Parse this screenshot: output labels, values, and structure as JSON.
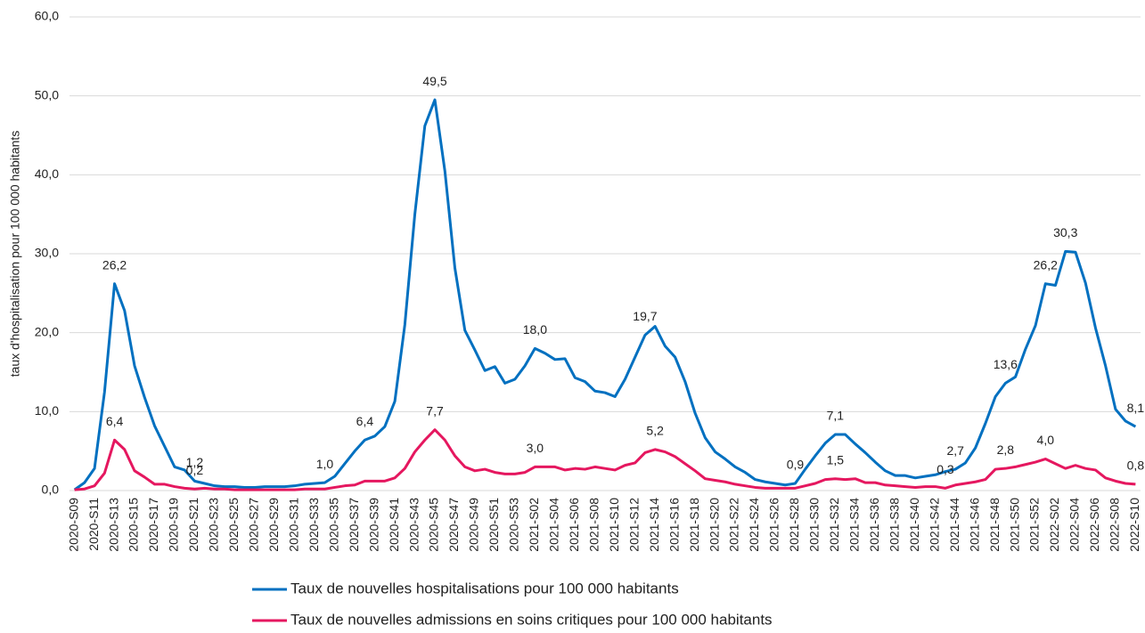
{
  "chart_data": {
    "type": "line",
    "y_label": "taux d'hospitalisation pour 100 000 habitants",
    "categories": [
      "2020-S09",
      null,
      "2020-S11",
      null,
      "2020-S13",
      null,
      "2020-S15",
      null,
      "2020-S17",
      null,
      "2020-S19",
      null,
      "2020-S21",
      null,
      "2020-S23",
      null,
      "2020-S25",
      null,
      "2020-S27",
      null,
      "2020-S29",
      null,
      "2020-S31",
      null,
      "2020-S33",
      null,
      "2020-S35",
      null,
      "2020-S37",
      null,
      "2020-S39",
      null,
      "2020-S41",
      null,
      "2020-S43",
      null,
      "2020-S45",
      null,
      "2020-S47",
      null,
      "2020-S49",
      null,
      "2020-S51",
      null,
      "2020-S53",
      null,
      "2021-S02",
      null,
      "2021-S04",
      null,
      "2021-S06",
      null,
      "2021-S08",
      null,
      "2021-S10",
      null,
      "2021-S12",
      null,
      "2021-S14",
      null,
      "2021-S16",
      null,
      "2021-S18",
      null,
      "2021-S20",
      null,
      "2021-S22",
      null,
      "2021-S24",
      null,
      "2021-S26",
      null,
      "2021-S28",
      null,
      "2021-S30",
      null,
      "2021-S32",
      null,
      "2021-S34",
      null,
      "2021-S36",
      null,
      "2021-S38",
      null,
      "2021-S40",
      null,
      "2021-S42",
      null,
      "2021-S44",
      null,
      "2021-S46",
      null,
      "2021-S48",
      null,
      "2021-S50",
      null,
      "2021-S52",
      null,
      "2022-S02",
      null,
      "2022-S04",
      null,
      "2022-S06",
      null,
      "2022-S08",
      null,
      "2022-S10"
    ],
    "series": [
      {
        "name": "Taux de nouvelles hospitalisations pour 100 000 habitants",
        "color": "#0070c0",
        "values": [
          0.1,
          1,
          2.8,
          12.5,
          26.2,
          22.8,
          15.8,
          11.8,
          8.2,
          5.6,
          3.0,
          2.6,
          1.2,
          0.9,
          0.6,
          0.5,
          0.5,
          0.4,
          0.4,
          0.5,
          0.5,
          0.5,
          0.6,
          0.8,
          0.9,
          1.0,
          1.8,
          3.4,
          5.0,
          6.4,
          6.9,
          8.1,
          11.3,
          21,
          35,
          46.2,
          49.5,
          40.5,
          28.2,
          20.3,
          17.8,
          15.2,
          15.7,
          13.6,
          14.1,
          15.8,
          18.0,
          17.4,
          16.6,
          16.7,
          14.3,
          13.8,
          12.6,
          12.4,
          11.9,
          14.1,
          16.9,
          19.7,
          20.8,
          18.3,
          16.9,
          13.8,
          9.8,
          6.7,
          4.9,
          4.0,
          3.0,
          2.3,
          1.4,
          1.1,
          0.9,
          0.7,
          0.9,
          2.7,
          4.4,
          6.0,
          7.1,
          7.1,
          5.9,
          4.8,
          3.6,
          2.5,
          1.9,
          1.9,
          1.6,
          1.8,
          2.0,
          2.4,
          2.7,
          3.5,
          5.4,
          8.5,
          11.9,
          13.6,
          14.4,
          17.9,
          20.9,
          26.2,
          26.0,
          30.3,
          30.2,
          26.3,
          20.6,
          15.8,
          10.3,
          8.8,
          8.1
        ],
        "value_labels": [
          null,
          null,
          null,
          null,
          "26,2",
          null,
          null,
          null,
          null,
          null,
          null,
          null,
          "1,2",
          null,
          null,
          null,
          null,
          null,
          null,
          null,
          null,
          null,
          null,
          null,
          null,
          "1,0",
          null,
          null,
          null,
          "6,4",
          null,
          null,
          null,
          null,
          null,
          null,
          "49,5",
          null,
          null,
          null,
          null,
          null,
          null,
          null,
          null,
          null,
          "18,0",
          null,
          null,
          null,
          null,
          null,
          null,
          null,
          null,
          null,
          null,
          "19,7",
          null,
          null,
          null,
          null,
          null,
          null,
          null,
          null,
          null,
          null,
          null,
          null,
          null,
          null,
          "0,9",
          null,
          null,
          null,
          "7,1",
          null,
          null,
          null,
          null,
          null,
          null,
          null,
          null,
          null,
          null,
          null,
          "2,7",
          null,
          null,
          null,
          null,
          "13,6",
          null,
          null,
          null,
          "26,2",
          null,
          "30,3",
          null,
          null,
          null,
          null,
          null,
          null,
          "8,1"
        ]
      },
      {
        "name": "Taux de nouvelles admissions en soins critiques pour 100 000 habitants",
        "color": "#e5175f",
        "values": [
          0.1,
          0.2,
          0.6,
          2.2,
          6.4,
          5.2,
          2.5,
          1.7,
          0.8,
          0.8,
          0.5,
          0.3,
          0.2,
          0.3,
          0.2,
          0.2,
          0.1,
          0.1,
          0.1,
          0.1,
          0.1,
          0.1,
          0.1,
          0.2,
          0.2,
          0.2,
          0.4,
          0.6,
          0.7,
          1.2,
          1.2,
          1.2,
          1.6,
          2.8,
          4.9,
          6.4,
          7.7,
          6.4,
          4.4,
          3.0,
          2.5,
          2.7,
          2.3,
          2.1,
          2.1,
          2.3,
          3.0,
          3.0,
          3.0,
          2.6,
          2.8,
          2.7,
          3.0,
          2.8,
          2.6,
          3.2,
          3.5,
          4.8,
          5.2,
          4.9,
          4.3,
          3.4,
          2.5,
          1.5,
          1.3,
          1.1,
          0.8,
          0.6,
          0.4,
          0.3,
          0.3,
          0.3,
          0.3,
          0.6,
          0.9,
          1.4,
          1.5,
          1.4,
          1.5,
          1.0,
          1.0,
          0.7,
          0.6,
          0.5,
          0.4,
          0.5,
          0.5,
          0.3,
          0.7,
          0.9,
          1.1,
          1.4,
          2.7,
          2.8,
          3.0,
          3.3,
          3.6,
          4.0,
          3.4,
          2.8,
          3.2,
          2.8,
          2.6,
          1.6,
          1.2,
          0.9,
          0.8
        ],
        "value_labels": [
          null,
          null,
          null,
          null,
          "6,4",
          null,
          null,
          null,
          null,
          null,
          null,
          null,
          "0,2",
          null,
          null,
          null,
          null,
          null,
          null,
          null,
          null,
          null,
          null,
          null,
          null,
          null,
          null,
          null,
          null,
          null,
          null,
          null,
          null,
          null,
          null,
          null,
          "7,7",
          null,
          null,
          null,
          null,
          null,
          null,
          null,
          null,
          null,
          "3,0",
          null,
          null,
          null,
          null,
          null,
          null,
          null,
          null,
          null,
          null,
          null,
          "5,2",
          null,
          null,
          null,
          null,
          null,
          null,
          null,
          null,
          null,
          null,
          null,
          null,
          null,
          null,
          null,
          null,
          null,
          "1,5",
          null,
          null,
          null,
          null,
          null,
          null,
          null,
          null,
          null,
          null,
          "0,3",
          null,
          null,
          null,
          null,
          null,
          "2,8",
          null,
          null,
          null,
          "4,0",
          null,
          null,
          null,
          null,
          null,
          null,
          null,
          null,
          "0,8"
        ]
      }
    ],
    "ylim": [
      0,
      60
    ],
    "yticks": [
      {
        "value": 0,
        "label": "0,0"
      },
      {
        "value": 10,
        "label": "10,0"
      },
      {
        "value": 20,
        "label": "20,0"
      },
      {
        "value": 30,
        "label": "30,0"
      },
      {
        "value": 40,
        "label": "40,0"
      },
      {
        "value": 50,
        "label": "50,0"
      },
      {
        "value": 60,
        "label": "60,0"
      }
    ],
    "grid": true,
    "legend": "bottom"
  }
}
